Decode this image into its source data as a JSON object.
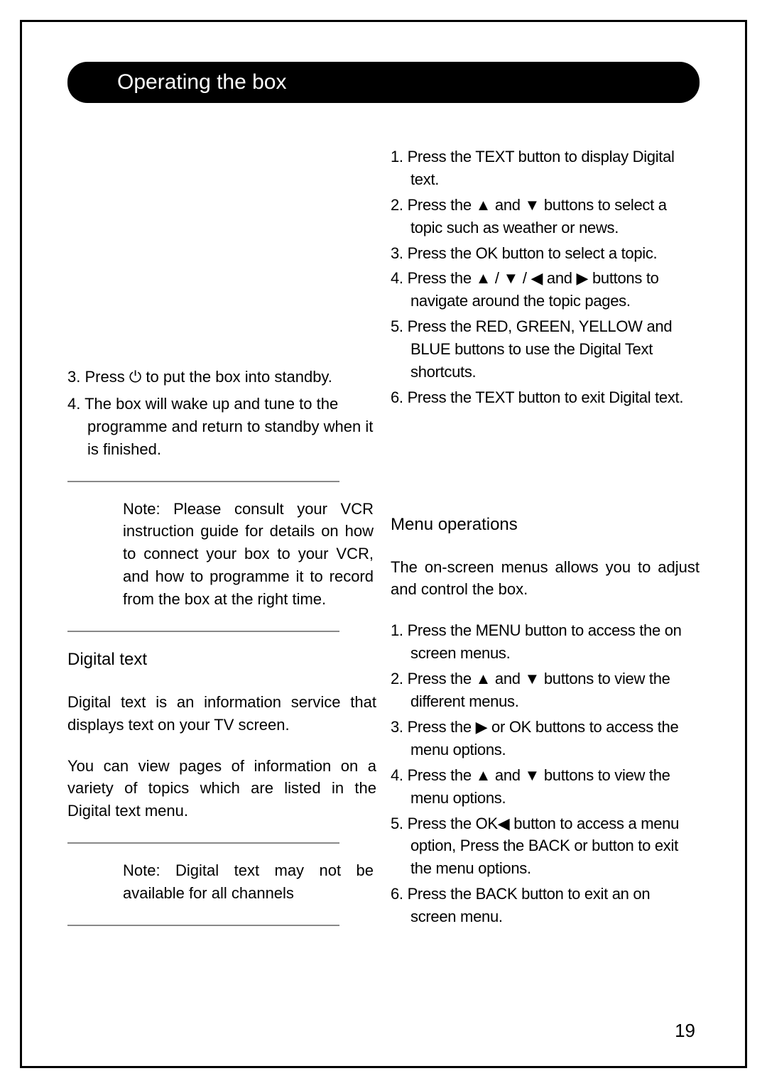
{
  "page": {
    "title": "Operating the box",
    "number": "19",
    "colors": {
      "text": "#000000",
      "bg": "#ffffff",
      "title_bg": "#000000",
      "title_text": "#ffffff",
      "rule": "#888888"
    },
    "fontsize": {
      "title": 30,
      "body": 22,
      "heading": 24,
      "pagenum": 26
    }
  },
  "glyphs": {
    "power": "⏻",
    "up": "▲",
    "down": "▼",
    "left": "◀",
    "right": "▶"
  },
  "left": {
    "resume_items": [
      {
        "num": "3.",
        "text_a": "Press ",
        "icon": "power",
        "text_b": " to put the box into standby."
      },
      {
        "num": "4.",
        "text_a": "The box will wake up and tune to the programme and return to standby when it is finished."
      }
    ],
    "note_vcr": "Note: Please consult your VCR instruction guide for details on how to connect your box to your VCR, and how to programme it to record from the box at the right time.",
    "digital_text_heading": "Digital text",
    "digital_text_p1": "Digital text is an information service that displays text on your TV screen.",
    "digital_text_p2": "You can view pages of information on a variety of topics which are listed in the Digital text menu.",
    "note_digital": "Note: Digital text may not be available for all channels"
  },
  "right": {
    "digital_steps": [
      {
        "num": "1.",
        "pre": "Press the ",
        "b1": "TEXT",
        "post": " button to display Digital text."
      },
      {
        "num": "2.",
        "pre": "Press the ",
        "i1": "up",
        "mid1": " and ",
        "i2": "down",
        "post": " buttons to select a topic such as weather or news."
      },
      {
        "num": "3.",
        "pre": "Press the ",
        "b1": "OK",
        "post": " button to select a topic."
      },
      {
        "num": "4.",
        "pre": "Press the ",
        "i1": "up",
        "mid1": " / ",
        "i2": "down",
        "mid2": " / ",
        "i3": "left",
        "mid3": " and ",
        "i4": "right",
        "post": " buttons to navigate around the topic pages."
      },
      {
        "num": "5.",
        "pre": "Press the ",
        "b1": "RED, GREEN, YELLOW",
        "mid1": " and ",
        "b2": "BLUE",
        "post": " buttons to use the Digital Text shortcuts."
      },
      {
        "num": "6.",
        "pre": "Press the ",
        "b1": "TEXT",
        "post": " button to exit Digital text."
      }
    ],
    "menu_heading": "Menu operations",
    "menu_intro": "The on-screen menus allows you to adjust and control the box.",
    "menu_steps": [
      {
        "num": "1.",
        "pre": "Press the ",
        "b1": "MENU ",
        "post": "button to access the on screen menus."
      },
      {
        "num": "2.",
        "pre": "Press the ",
        "i1": "up",
        "mid1": " and ",
        "i2": "down",
        "post": " buttons to view the different menus."
      },
      {
        "num": "3.",
        "pre": "Press the ",
        "i1": "right",
        "post": " or OK buttons to access the menu options."
      },
      {
        "num": "4.",
        "pre": "Press the ",
        "i1": "up",
        "mid1": " and ",
        "i2": "down",
        "post": " buttons to view the menu options."
      },
      {
        "num": "5.",
        "pre": "Press the ",
        "b1": "OK",
        "mid1": " button to access a menu option,  Press the ",
        "b2": "BACK ",
        "mid2": "or ",
        "i1": "left",
        "post": " button to exit the menu options."
      },
      {
        "num": "6.",
        "pre": "Press the ",
        "b1": "BACK ",
        "post": "button to exit an on screen menu."
      }
    ]
  }
}
